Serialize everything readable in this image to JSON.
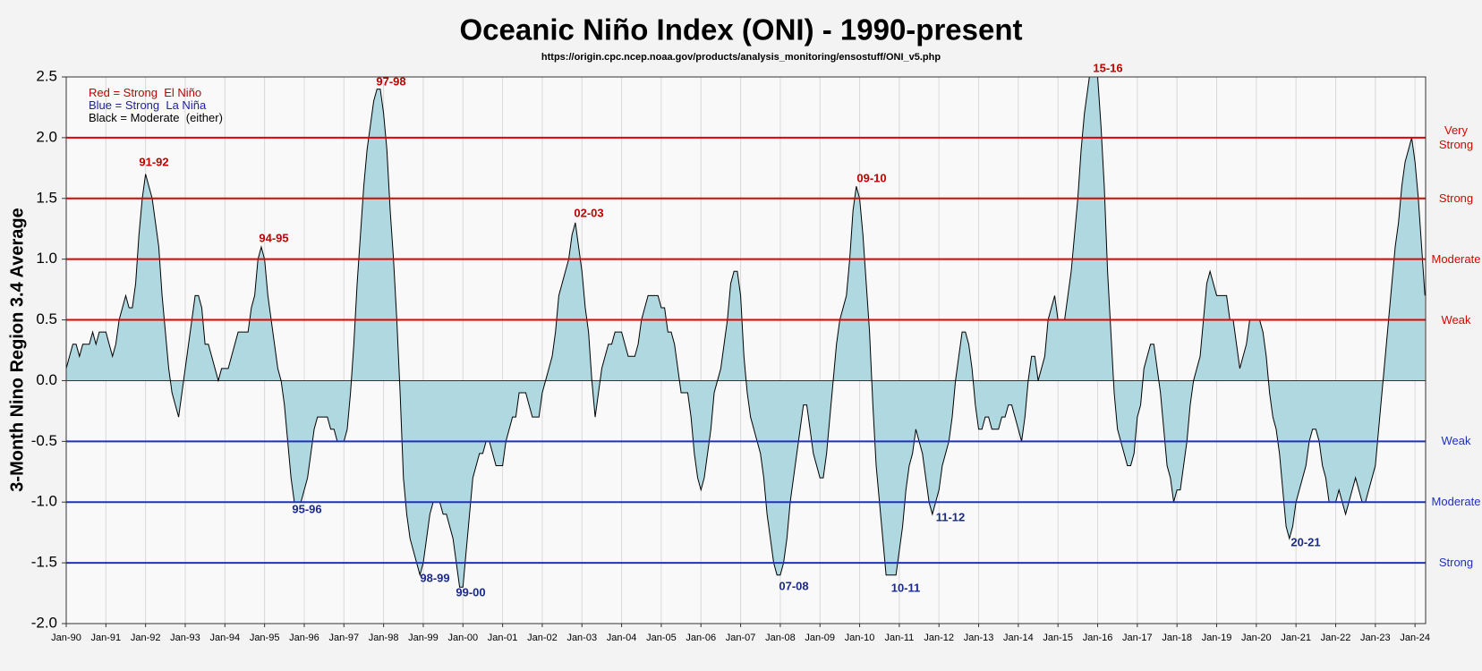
{
  "chart_data": {
    "type": "area",
    "title": "Oceanic Niño Index (ONI) - 1990-present",
    "subtitle": "https://origin.cpc.ncep.noaa.gov/products/analysis_monitoring/ensostuff/ONI_v5.php",
    "y_label": "3-Month Nino Region 3.4 Average",
    "legend_lines": [
      {
        "text": "Red = Strong  El Niño",
        "color": "#c00000"
      },
      {
        "text": "Blue = Strong  La Niña",
        "color": "#2020a0"
      },
      {
        "text": "Black = Moderate  (either)",
        "color": "#000000"
      }
    ],
    "categories": [
      "Jan-90",
      null,
      null,
      null,
      null,
      null,
      null,
      null,
      null,
      null,
      null,
      null,
      "Jan-91",
      null,
      null,
      null,
      null,
      null,
      null,
      null,
      null,
      null,
      null,
      null,
      "Jan-92",
      null,
      null,
      null,
      null,
      null,
      null,
      null,
      null,
      null,
      null,
      null,
      "Jan-93",
      null,
      null,
      null,
      null,
      null,
      null,
      null,
      null,
      null,
      null,
      null,
      "Jan-94",
      null,
      null,
      null,
      null,
      null,
      null,
      null,
      null,
      null,
      null,
      null,
      "Jan-95",
      null,
      null,
      null,
      null,
      null,
      null,
      null,
      null,
      null,
      null,
      null,
      "Jan-96",
      null,
      null,
      null,
      null,
      null,
      null,
      null,
      null,
      null,
      null,
      null,
      "Jan-97",
      null,
      null,
      null,
      null,
      null,
      null,
      null,
      null,
      null,
      null,
      null,
      "Jan-98",
      null,
      null,
      null,
      null,
      null,
      null,
      null,
      null,
      null,
      null,
      null,
      "Jan-99",
      null,
      null,
      null,
      null,
      null,
      null,
      null,
      null,
      null,
      null,
      null,
      "Jan-00",
      null,
      null,
      null,
      null,
      null,
      null,
      null,
      null,
      null,
      null,
      null,
      "Jan-01",
      null,
      null,
      null,
      null,
      null,
      null,
      null,
      null,
      null,
      null,
      null,
      "Jan-02",
      null,
      null,
      null,
      null,
      null,
      null,
      null,
      null,
      null,
      null,
      null,
      "Jan-03",
      null,
      null,
      null,
      null,
      null,
      null,
      null,
      null,
      null,
      null,
      null,
      "Jan-04",
      null,
      null,
      null,
      null,
      null,
      null,
      null,
      null,
      null,
      null,
      null,
      "Jan-05",
      null,
      null,
      null,
      null,
      null,
      null,
      null,
      null,
      null,
      null,
      null,
      "Jan-06",
      null,
      null,
      null,
      null,
      null,
      null,
      null,
      null,
      null,
      null,
      null,
      "Jan-07",
      null,
      null,
      null,
      null,
      null,
      null,
      null,
      null,
      null,
      null,
      null,
      "Jan-08",
      null,
      null,
      null,
      null,
      null,
      null,
      null,
      null,
      null,
      null,
      null,
      "Jan-09",
      null,
      null,
      null,
      null,
      null,
      null,
      null,
      null,
      null,
      null,
      null,
      "Jan-10",
      null,
      null,
      null,
      null,
      null,
      null,
      null,
      null,
      null,
      null,
      null,
      "Jan-11",
      null,
      null,
      null,
      null,
      null,
      null,
      null,
      null,
      null,
      null,
      null,
      "Jan-12",
      null,
      null,
      null,
      null,
      null,
      null,
      null,
      null,
      null,
      null,
      null,
      "Jan-13",
      null,
      null,
      null,
      null,
      null,
      null,
      null,
      null,
      null,
      null,
      null,
      "Jan-14",
      null,
      null,
      null,
      null,
      null,
      null,
      null,
      null,
      null,
      null,
      null,
      "Jan-15",
      null,
      null,
      null,
      null,
      null,
      null,
      null,
      null,
      null,
      null,
      null,
      "Jan-16",
      null,
      null,
      null,
      null,
      null,
      null,
      null,
      null,
      null,
      null,
      null,
      "Jan-17",
      null,
      null,
      null,
      null,
      null,
      null,
      null,
      null,
      null,
      null,
      null,
      "Jan-18",
      null,
      null,
      null,
      null,
      null,
      null,
      null,
      null,
      null,
      null,
      null,
      "Jan-19",
      null,
      null,
      null,
      null,
      null,
      null,
      null,
      null,
      null,
      null,
      null,
      "Jan-20",
      null,
      null,
      null,
      null,
      null,
      null,
      null,
      null,
      null,
      null,
      null,
      "Jan-21",
      null,
      null,
      null,
      null,
      null,
      null,
      null,
      null,
      null,
      null,
      null,
      "Jan-22",
      null,
      null,
      null,
      null,
      null,
      null,
      null,
      null,
      null,
      null,
      null,
      "Jan-23",
      null,
      null,
      null,
      null,
      null,
      null,
      null,
      null,
      null,
      null,
      null,
      "Jan-24",
      null,
      null,
      null
    ],
    "values": [
      0.1,
      0.2,
      0.3,
      0.3,
      0.2,
      0.3,
      0.3,
      0.3,
      0.4,
      0.3,
      0.4,
      0.4,
      0.4,
      0.3,
      0.2,
      0.3,
      0.5,
      0.6,
      0.7,
      0.6,
      0.6,
      0.8,
      1.2,
      1.5,
      1.7,
      1.6,
      1.5,
      1.3,
      1.1,
      0.7,
      0.4,
      0.1,
      -0.1,
      -0.2,
      -0.3,
      -0.1,
      0.1,
      0.3,
      0.5,
      0.7,
      0.7,
      0.6,
      0.3,
      0.3,
      0.2,
      0.1,
      0.0,
      0.1,
      0.1,
      0.1,
      0.2,
      0.3,
      0.4,
      0.4,
      0.4,
      0.4,
      0.6,
      0.7,
      1.0,
      1.1,
      1.0,
      0.7,
      0.5,
      0.3,
      0.1,
      0.0,
      -0.2,
      -0.5,
      -0.8,
      -1.0,
      -1.0,
      -1.0,
      -0.9,
      -0.8,
      -0.6,
      -0.4,
      -0.3,
      -0.3,
      -0.3,
      -0.3,
      -0.4,
      -0.4,
      -0.5,
      -0.5,
      -0.5,
      -0.4,
      -0.1,
      0.3,
      0.8,
      1.2,
      1.6,
      1.9,
      2.1,
      2.3,
      2.4,
      2.4,
      2.2,
      1.9,
      1.4,
      1.0,
      0.5,
      -0.1,
      -0.8,
      -1.1,
      -1.3,
      -1.4,
      -1.5,
      -1.6,
      -1.5,
      -1.3,
      -1.1,
      -1.0,
      -1.0,
      -1.0,
      -1.1,
      -1.1,
      -1.2,
      -1.3,
      -1.5,
      -1.7,
      -1.7,
      -1.4,
      -1.1,
      -0.8,
      -0.7,
      -0.6,
      -0.6,
      -0.5,
      -0.5,
      -0.6,
      -0.7,
      -0.7,
      -0.7,
      -0.5,
      -0.4,
      -0.3,
      -0.3,
      -0.1,
      -0.1,
      -0.1,
      -0.2,
      -0.3,
      -0.3,
      -0.3,
      -0.1,
      0.0,
      0.1,
      0.2,
      0.4,
      0.7,
      0.8,
      0.9,
      1.0,
      1.2,
      1.3,
      1.1,
      0.9,
      0.6,
      0.4,
      0.0,
      -0.3,
      -0.1,
      0.1,
      0.2,
      0.3,
      0.3,
      0.4,
      0.4,
      0.4,
      0.3,
      0.2,
      0.2,
      0.2,
      0.3,
      0.5,
      0.6,
      0.7,
      0.7,
      0.7,
      0.7,
      0.6,
      0.6,
      0.4,
      0.4,
      0.3,
      0.1,
      -0.1,
      -0.1,
      -0.1,
      -0.3,
      -0.6,
      -0.8,
      -0.9,
      -0.8,
      -0.6,
      -0.4,
      -0.1,
      0.0,
      0.1,
      0.3,
      0.5,
      0.8,
      0.9,
      0.9,
      0.7,
      0.2,
      -0.1,
      -0.3,
      -0.4,
      -0.5,
      -0.6,
      -0.8,
      -1.1,
      -1.3,
      -1.5,
      -1.6,
      -1.6,
      -1.5,
      -1.3,
      -1.0,
      -0.8,
      -0.6,
      -0.4,
      -0.2,
      -0.2,
      -0.4,
      -0.6,
      -0.7,
      -0.8,
      -0.8,
      -0.6,
      -0.3,
      0.0,
      0.3,
      0.5,
      0.6,
      0.7,
      1.0,
      1.4,
      1.6,
      1.5,
      1.2,
      0.8,
      0.4,
      -0.2,
      -0.7,
      -1.0,
      -1.3,
      -1.6,
      -1.6,
      -1.6,
      -1.6,
      -1.4,
      -1.2,
      -0.9,
      -0.7,
      -0.6,
      -0.4,
      -0.5,
      -0.6,
      -0.8,
      -1.0,
      -1.1,
      -1.0,
      -0.9,
      -0.7,
      -0.6,
      -0.5,
      -0.3,
      0.0,
      0.2,
      0.4,
      0.4,
      0.3,
      0.1,
      -0.2,
      -0.4,
      -0.4,
      -0.3,
      -0.3,
      -0.4,
      -0.4,
      -0.4,
      -0.3,
      -0.3,
      -0.2,
      -0.2,
      -0.3,
      -0.4,
      -0.5,
      -0.3,
      0.0,
      0.2,
      0.2,
      0.0,
      0.1,
      0.2,
      0.5,
      0.6,
      0.7,
      0.5,
      0.5,
      0.5,
      0.7,
      0.9,
      1.2,
      1.5,
      1.9,
      2.2,
      2.4,
      2.6,
      2.6,
      2.5,
      2.1,
      1.6,
      0.9,
      0.4,
      -0.1,
      -0.4,
      -0.5,
      -0.6,
      -0.7,
      -0.7,
      -0.6,
      -0.3,
      -0.2,
      0.1,
      0.2,
      0.3,
      0.3,
      0.1,
      -0.1,
      -0.4,
      -0.7,
      -0.8,
      -1.0,
      -0.9,
      -0.9,
      -0.7,
      -0.5,
      -0.2,
      0.0,
      0.1,
      0.2,
      0.5,
      0.8,
      0.9,
      0.8,
      0.7,
      0.7,
      0.7,
      0.7,
      0.5,
      0.5,
      0.3,
      0.1,
      0.2,
      0.3,
      0.5,
      0.5,
      0.5,
      0.5,
      0.4,
      0.2,
      -0.1,
      -0.3,
      -0.4,
      -0.6,
      -0.9,
      -1.2,
      -1.3,
      -1.2,
      -1.0,
      -0.9,
      -0.8,
      -0.7,
      -0.5,
      -0.4,
      -0.4,
      -0.5,
      -0.7,
      -0.8,
      -1.0,
      -1.0,
      -1.0,
      -0.9,
      -1.0,
      -1.1,
      -1.0,
      -0.9,
      -0.8,
      -0.9,
      -1.0,
      -1.0,
      -0.9,
      -0.8,
      -0.7,
      -0.4,
      -0.1,
      0.2,
      0.5,
      0.8,
      1.1,
      1.3,
      1.6,
      1.8,
      1.9,
      2.0,
      1.8,
      1.5,
      1.1,
      0.7
    ],
    "color": "#000000",
    "fill": "#b0d8e0",
    "ylim": [
      -2,
      2.5
    ],
    "yticks": [
      {
        "value": -2,
        "label": "-2.0"
      },
      -1.5,
      {
        "value": -1,
        "label": "-1.0"
      },
      -0.5,
      {
        "value": 0,
        "label": "0.0"
      },
      0.5,
      {
        "value": 1,
        "label": "1.0"
      },
      1.5,
      {
        "value": 2,
        "label": "2.0"
      },
      2.5
    ],
    "grid": true,
    "thresholds": [
      {
        "value": 2,
        "label": "Very Strong",
        "color": "#e00000"
      },
      {
        "value": 1.5,
        "label": "Strong",
        "color": "#e00000"
      },
      {
        "value": 1,
        "label": "Moderate",
        "color": "#e00000"
      },
      {
        "value": 0.5,
        "label": "Weak",
        "color": "#e00000"
      },
      {
        "value": -0.5,
        "label": "Weak",
        "color": "#2030c0"
      },
      {
        "value": -1,
        "label": "Moderate",
        "color": "#2030c0"
      },
      {
        "value": -1.5,
        "label": "Strong",
        "color": "#2030c0"
      }
    ],
    "annotations": [
      {
        "text": "91-92",
        "color": "#c00000"
      },
      {
        "text": "94-95",
        "color": "#c00000"
      },
      {
        "text": "97-98",
        "color": "#c00000"
      },
      {
        "text": "02-03",
        "color": "#c00000"
      },
      {
        "text": "09-10",
        "color": "#c00000"
      },
      {
        "text": "15-16",
        "color": "#c00000"
      },
      {
        "text": "95-96",
        "color": "#1a2a8a"
      },
      {
        "text": "98-99",
        "color": "#1a2a8a"
      },
      {
        "text": "99-00",
        "color": "#1a2a8a"
      },
      {
        "text": "07-08",
        "color": "#1a2a8a"
      },
      {
        "text": "10-11",
        "color": "#1a2a8a"
      },
      {
        "text": "11-12",
        "color": "#1a2a8a"
      },
      {
        "text": "20-21",
        "color": "#1a2a8a"
      }
    ]
  }
}
